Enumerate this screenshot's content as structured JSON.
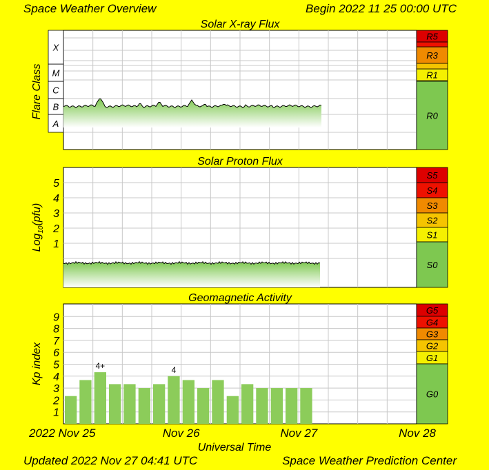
{
  "header": {
    "title": "Space Weather Overview",
    "begin": "Begin 2022 11 25 00:00 UTC"
  },
  "footer": {
    "updated": "Updated 2022 Nov 27 04:41 UTC",
    "center": "Space Weather Prediction Center"
  },
  "colors": {
    "background": "#ffff00",
    "fill_green": "#8ccc5a",
    "line": "#000000",
    "scale_red": "#dd0000",
    "scale_orange": "#f08a00",
    "scale_amber": "#f5c400",
    "scale_yellow": "#f5f000",
    "scale_green": "#7ec850"
  },
  "chart_data": [
    {
      "type": "area",
      "title": "Solar X-ray Flux",
      "ylabel": "Flare Class",
      "y_categories": [
        "A",
        "B",
        "C",
        "M",
        "X"
      ],
      "x_range": [
        "2022-11-25",
        "2022-11-28"
      ],
      "x": [
        "2022-11-25 00:00",
        "2022-11-25 12:00",
        "2022-11-25 18:00",
        "2022-11-26 00:00",
        "2022-11-26 06:00",
        "2022-11-26 12:00",
        "2022-11-26 18:00",
        "2022-11-27 00:00",
        "2022-11-27 04:41"
      ],
      "values": [
        "B2",
        "B5",
        "B2",
        "B3",
        "B3",
        "B2",
        "B2",
        "B2",
        "B2"
      ],
      "scale": [
        {
          "label": "R5",
          "color": "#dd0000"
        },
        {
          "label": "R3",
          "color": "#f08a00"
        },
        {
          "label": "R1",
          "color": "#f5f000"
        },
        {
          "label": "R0",
          "color": "#7ec850"
        }
      ]
    },
    {
      "type": "area",
      "title": "Solar Proton Flux",
      "ylabel_base": "Log",
      "ylabel_sub": "10",
      "ylabel_rest": "(pfu)",
      "y_ticks": [
        1,
        2,
        3,
        4,
        5
      ],
      "x_range": [
        "2022-11-25",
        "2022-11-28"
      ],
      "values_note_level": -0.3,
      "scale": [
        {
          "label": "S5",
          "color": "#dd0000"
        },
        {
          "label": "S4",
          "color": "#ee1100"
        },
        {
          "label": "S3",
          "color": "#f08a00"
        },
        {
          "label": "S2",
          "color": "#f5c400"
        },
        {
          "label": "S1",
          "color": "#f5f000"
        },
        {
          "label": "S0",
          "color": "#7ec850"
        }
      ]
    },
    {
      "type": "bar",
      "title": "Geomagnetic Activity",
      "ylabel": "Kp index",
      "y_ticks": [
        1,
        2,
        3,
        4,
        5,
        6,
        7,
        8,
        9
      ],
      "x_range": [
        "2022-11-25",
        "2022-11-28"
      ],
      "x_tick_labels": [
        "2022 Nov 25",
        "Nov 26",
        "Nov 27",
        "Nov 28"
      ],
      "xlabel": "Universal Time",
      "kp": [
        2.33,
        3.67,
        4.33,
        3.33,
        3.33,
        3.0,
        3.33,
        4.0,
        3.67,
        3.0,
        3.67,
        2.33,
        3.33,
        3.0,
        3.0,
        3.0,
        3.0
      ],
      "annotations": [
        {
          "index": 2,
          "text": "4+"
        },
        {
          "index": 7,
          "text": "4"
        }
      ],
      "scale": [
        {
          "label": "G5",
          "color": "#dd0000"
        },
        {
          "label": "G4",
          "color": "#ee1100"
        },
        {
          "label": "G3",
          "color": "#f08a00"
        },
        {
          "label": "G2",
          "color": "#f5c400"
        },
        {
          "label": "G1",
          "color": "#f5f000"
        },
        {
          "label": "G0",
          "color": "#7ec850"
        }
      ]
    }
  ]
}
